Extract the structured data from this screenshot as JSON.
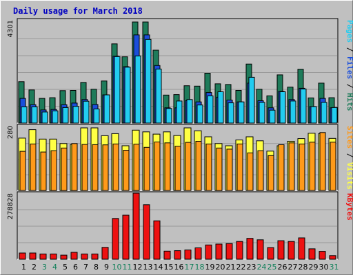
{
  "title": "Daily usage for March 2018",
  "colors": {
    "hits": "#1e7b5a",
    "files": "#1a4edb",
    "pages": "#22ccf0",
    "visits": "#ffff44",
    "sites": "#ff9a1a",
    "kbytes": "#ee1111",
    "weekend_label": "#11805a",
    "weekday_label": "#000000"
  },
  "side_labels": {
    "top": [
      {
        "text": "Pages",
        "color_key": "pages"
      },
      {
        "text": " / ",
        "color_key": "weekday_label"
      },
      {
        "text": "Files",
        "color_key": "files"
      },
      {
        "text": " / ",
        "color_key": "weekday_label"
      },
      {
        "text": "Hits",
        "color_key": "hits"
      }
    ],
    "middle": [
      {
        "text": "Sites",
        "color_key": "sites"
      },
      {
        "text": " / ",
        "color_key": "weekday_label"
      },
      {
        "text": "Visits",
        "color_key": "visits"
      }
    ],
    "bottom": [
      {
        "text": "KBytes",
        "color_key": "kbytes"
      }
    ]
  },
  "chart_data": [
    {
      "type": "bar",
      "panel": "top",
      "max_label": "4301",
      "ylim": [
        0,
        4301
      ],
      "categories": [
        "1",
        "2",
        "3",
        "4",
        "5",
        "6",
        "7",
        "8",
        "9",
        "10",
        "11",
        "12",
        "13",
        "14",
        "15",
        "16",
        "17",
        "18",
        "19",
        "20",
        "21",
        "22",
        "23",
        "24",
        "25",
        "26",
        "27",
        "28",
        "29",
        "30",
        "31"
      ],
      "weekend": [
        "3",
        "4",
        "10",
        "11",
        "17",
        "18",
        "24",
        "25",
        "31"
      ],
      "series": [
        {
          "name": "Hits",
          "values": [
            1760,
            1410,
            1050,
            1080,
            1380,
            1390,
            1730,
            1440,
            1790,
            3370,
            2820,
            4301,
            4301,
            3100,
            1190,
            1210,
            1590,
            1570,
            2120,
            1670,
            1640,
            1390,
            2510,
            1440,
            1160,
            2050,
            1530,
            2290,
            1070,
            1700,
            1080
          ]
        },
        {
          "name": "Files",
          "values": [
            1050,
            780,
            560,
            580,
            780,
            850,
            1000,
            790,
            1200,
            2850,
            2400,
            3750,
            3750,
            2450,
            650,
            650,
            950,
            900,
            1300,
            1100,
            980,
            900,
            1700,
            950,
            650,
            1350,
            1000,
            1480,
            700,
            1050,
            650
          ]
        },
        {
          "name": "Pages",
          "values": [
            690,
            690,
            470,
            520,
            660,
            710,
            930,
            600,
            1200,
            2830,
            2380,
            2860,
            3560,
            2300,
            620,
            940,
            1000,
            770,
            1160,
            1330,
            860,
            900,
            1950,
            880,
            550,
            1330,
            940,
            1450,
            700,
            880,
            660
          ]
        }
      ]
    },
    {
      "type": "bar",
      "panel": "middle",
      "max_label": "280",
      "ylim": [
        0,
        280
      ],
      "categories": [
        "1",
        "2",
        "3",
        "4",
        "5",
        "6",
        "7",
        "8",
        "9",
        "10",
        "11",
        "12",
        "13",
        "14",
        "15",
        "16",
        "17",
        "18",
        "19",
        "20",
        "21",
        "22",
        "23",
        "24",
        "25",
        "26",
        "27",
        "28",
        "29",
        "30",
        "31"
      ],
      "series": [
        {
          "name": "Visits",
          "values": [
            234,
            272,
            230,
            230,
            210,
            206,
            280,
            280,
            245,
            254,
            200,
            270,
            262,
            252,
            262,
            246,
            280,
            267,
            240,
            210,
            200,
            226,
            240,
            222,
            176,
            200,
            220,
            232,
            256,
            254,
            233
          ]
        },
        {
          "name": "Sites",
          "values": [
            175,
            208,
            172,
            178,
            190,
            210,
            206,
            205,
            204,
            208,
            180,
            207,
            193,
            217,
            213,
            198,
            215,
            220,
            208,
            190,
            185,
            208,
            168,
            178,
            156,
            205,
            213,
            208,
            216,
            259,
            216
          ]
        }
      ]
    },
    {
      "type": "bar",
      "panel": "bottom",
      "max_label": "278828",
      "ylim": [
        0,
        278828
      ],
      "categories": [
        "1",
        "2",
        "3",
        "4",
        "5",
        "6",
        "7",
        "8",
        "9",
        "10",
        "11",
        "12",
        "13",
        "14",
        "15",
        "16",
        "17",
        "18",
        "19",
        "20",
        "21",
        "22",
        "23",
        "24",
        "25",
        "26",
        "27",
        "28",
        "29",
        "30",
        "31"
      ],
      "series": [
        {
          "name": "KBytes",
          "values": [
            26000,
            26000,
            22000,
            22000,
            17000,
            29000,
            22000,
            22000,
            50000,
            172000,
            186000,
            278828,
            230000,
            162000,
            34000,
            36000,
            39000,
            48000,
            60000,
            64000,
            66000,
            75000,
            88000,
            82000,
            49000,
            78000,
            75000,
            90000,
            44000,
            33000,
            15000
          ]
        }
      ]
    }
  ]
}
